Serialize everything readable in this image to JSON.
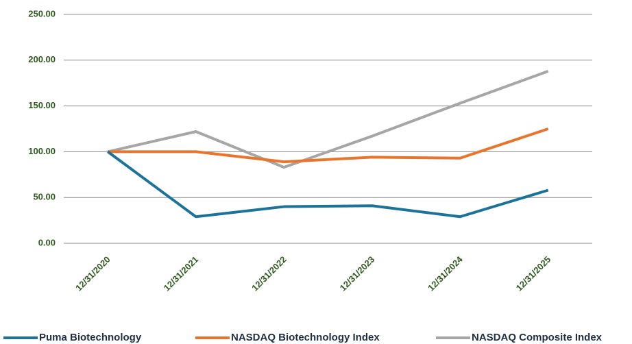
{
  "chart_data": {
    "type": "line",
    "categories": [
      "12/31/2020",
      "12/31/2021",
      "12/31/2022",
      "12/31/2023",
      "12/31/2024",
      "12/31/2025"
    ],
    "series": [
      {
        "name": "Puma Biotechnology",
        "color": "#1b7399",
        "values": [
          100,
          29,
          40,
          41,
          29,
          58
        ]
      },
      {
        "name": "NASDAQ Biotechnology Index",
        "color": "#e8752b",
        "values": [
          100,
          100,
          89,
          94,
          93,
          125
        ]
      },
      {
        "name": "NASDAQ Composite Index",
        "color": "#a6a6a6",
        "values": [
          100,
          122,
          83,
          117,
          153,
          188
        ]
      }
    ],
    "ylim": [
      0,
      250
    ],
    "yticks": [
      {
        "value": 0,
        "label": "0.00"
      },
      {
        "value": 50,
        "label": "50.00"
      },
      {
        "value": 100,
        "label": "100.00"
      },
      {
        "value": 150,
        "label": "150.00"
      },
      {
        "value": 200,
        "label": "200.00"
      },
      {
        "value": 250,
        "label": "250.00"
      }
    ],
    "grid": true,
    "legend": "bottom"
  }
}
